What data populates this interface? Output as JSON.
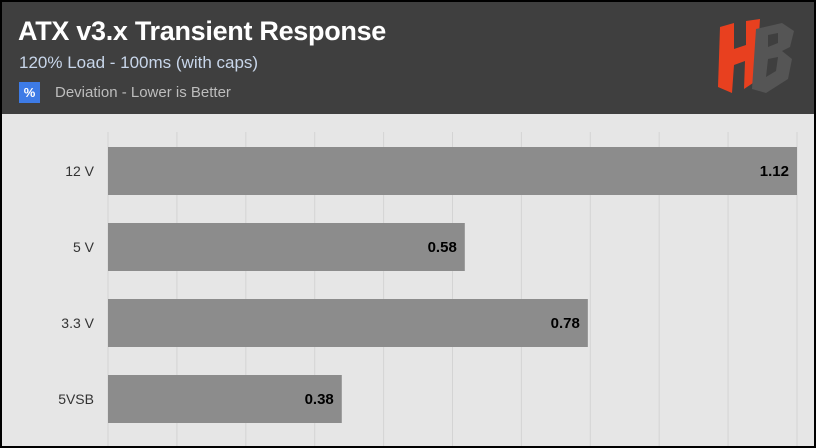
{
  "header": {
    "title": "ATX v3.x Transient Response",
    "subtitle": "120% Load - 100ms (with caps)",
    "metric_badge": "%",
    "metric_label": "Deviation - Lower is Better"
  },
  "logo": {
    "icon": "hb-logo",
    "text": "HB"
  },
  "colors": {
    "header_bg": "#3f3f3f",
    "plot_bg": "#e6e6e6",
    "bar": "#8c8c8c",
    "badge": "#3d7be6",
    "logo_red": "#e8401f",
    "logo_dark": "#555555"
  },
  "chart_data": {
    "type": "bar",
    "orientation": "horizontal",
    "categories": [
      "12 V",
      "5 V",
      "3.3 V",
      "5VSB"
    ],
    "values": [
      1.12,
      0.58,
      0.78,
      0.38
    ],
    "xlim": [
      0,
      1.12
    ],
    "grid": true
  }
}
